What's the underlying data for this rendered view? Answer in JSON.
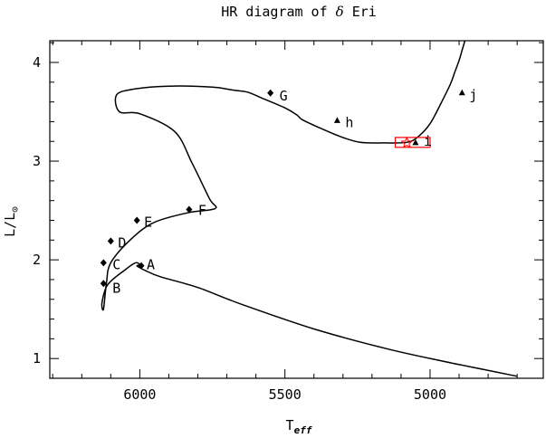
{
  "chart_data": {
    "type": "line",
    "title": "HR diagram of δ Eri",
    "xlabel": "T",
    "xlabel_sub": "eff",
    "ylabel": "L/L",
    "ylabel_sub": "⊙",
    "x_inverted": true,
    "xlim": [
      6310,
      4610
    ],
    "ylim": [
      0.8,
      4.22
    ],
    "x_ticks": [
      6000,
      5500,
      5000
    ],
    "x_tick_labels": [
      "6000",
      "5500",
      "5000"
    ],
    "y_ticks": [
      1,
      2,
      3,
      4
    ],
    "y_tick_labels": [
      "1",
      "2",
      "3",
      "4"
    ],
    "grid": false,
    "colors": {
      "track": "#000000",
      "box": "#ff0000",
      "star": "#ff0000"
    },
    "series": [
      {
        "style": "solid",
        "x": [
          4700,
          4800,
          4950,
          5150,
          5400,
          5650,
          5800,
          5930,
          5980,
          6000,
          6010,
          6000,
          6015,
          6050,
          6110,
          6130,
          6125,
          6115,
          6100,
          6030,
          5950,
          5830,
          5740,
          5760,
          5820,
          5880,
          6000,
          6070,
          6080,
          6020,
          5900,
          5750,
          5680,
          5630,
          5580,
          5500,
          5460,
          5440,
          5390,
          5310,
          5240,
          5160,
          5080,
          5040,
          5000,
          4960,
          4930,
          4915,
          4900,
          4890,
          4880
        ],
        "y": [
          0.82,
          0.88,
          0.97,
          1.1,
          1.3,
          1.55,
          1.72,
          1.83,
          1.89,
          1.92,
          1.94,
          1.95,
          1.97,
          1.9,
          1.75,
          1.57,
          1.5,
          1.76,
          1.97,
          2.21,
          2.38,
          2.48,
          2.52,
          2.62,
          2.98,
          3.3,
          3.48,
          3.5,
          3.67,
          3.73,
          3.76,
          3.75,
          3.72,
          3.7,
          3.64,
          3.54,
          3.47,
          3.42,
          3.35,
          3.25,
          3.19,
          3.185,
          3.19,
          3.25,
          3.38,
          3.6,
          3.78,
          3.9,
          4.02,
          4.12,
          4.22
        ]
      }
    ],
    "points": [
      {
        "label": "A",
        "marker": "diamond",
        "x": 5995,
        "y": 1.94
      },
      {
        "label": "B",
        "marker": "diamond",
        "x": 6125,
        "y": 1.76
      },
      {
        "label": "C",
        "marker": "diamond",
        "x": 6125,
        "y": 1.97
      },
      {
        "label": "D",
        "marker": "diamond",
        "x": 6100,
        "y": 2.19
      },
      {
        "label": "E",
        "marker": "diamond",
        "x": 6010,
        "y": 2.4
      },
      {
        "label": "F",
        "marker": "diamond",
        "x": 5830,
        "y": 2.51
      },
      {
        "label": "G",
        "marker": "diamond",
        "x": 5550,
        "y": 3.69
      },
      {
        "label": "h",
        "marker": "triangle",
        "x": 5320,
        "y": 3.41
      },
      {
        "label": "i",
        "marker": "triangle",
        "x": 5050,
        "y": 3.185
      },
      {
        "label": "j",
        "marker": "triangle",
        "x": 4890,
        "y": 3.69
      }
    ],
    "observed": {
      "marker": "star",
      "x": 5080,
      "y": 3.185,
      "box_x": [
        5000,
        5120
      ],
      "box_y": [
        3.14,
        3.24
      ]
    }
  }
}
